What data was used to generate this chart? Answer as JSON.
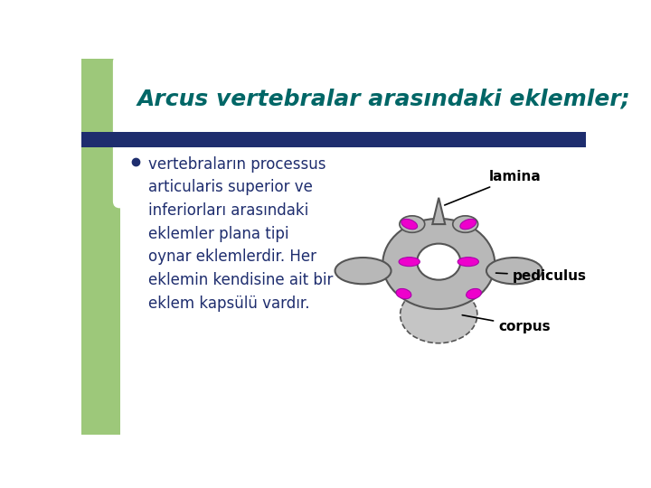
{
  "bg_color": "#ffffff",
  "left_bar_color": "#9dc87a",
  "title_text": "Arcus vertebralar arasındaki eklemler;",
  "title_color": "#006666",
  "title_fontsize": 18,
  "blue_bar_color": "#1e2d6e",
  "bullet_text": "vertebraların processus\narticularis superior ve\ninferiorları arasındaki\neklemler plana tipi\noynar eklemlerdir. Her\neklemin kendisine ait bir\neklem kapsülü vardır.",
  "bullet_color": "#1e2d6e",
  "bullet_fontsize": 12,
  "bullet_dot_color": "#1e2d6e",
  "label_lamina": "lamina",
  "label_pediculus": "pediculus",
  "label_corpus": "corpus",
  "label_color": "#000000",
  "label_fontsize": 10,
  "body_color": "#b8b8b8",
  "joint_color": "#ee00cc",
  "hole_color": "#ffffff"
}
